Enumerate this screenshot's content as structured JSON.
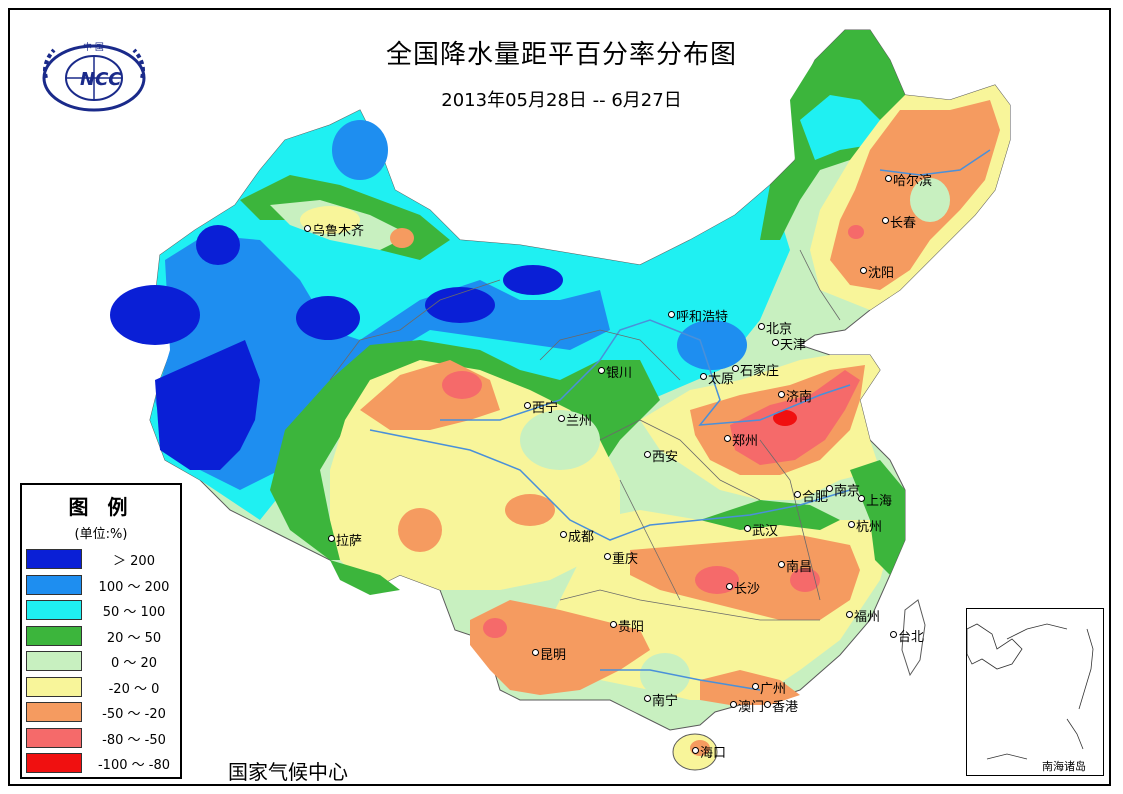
{
  "map": {
    "title": "全国降水量距平百分率分布图",
    "date_range": "2013年05月28日 -- 6月27日",
    "agency": "国家气候中心",
    "inset_label": "南海诸岛",
    "logo_text": "NCC",
    "logo_text_top": "中 国"
  },
  "legend": {
    "title": "图 例",
    "unit": "(单位:%)",
    "items": [
      {
        "label": "＞ 200",
        "color": "#0a1fd6"
      },
      {
        "label": "100 ～ 200",
        "color": "#1e8ef0"
      },
      {
        "label": "50 ～ 100",
        "color": "#1ff0f2"
      },
      {
        "label": "20 ～ 50",
        "color": "#3cb53c"
      },
      {
        "label": "0 ～ 20",
        "color": "#c8f0c0"
      },
      {
        "label": "-20 ～ 0",
        "color": "#f8f59a"
      },
      {
        "label": "-50 ～ -20",
        "color": "#f59b60"
      },
      {
        "label": "-80 ～ -50",
        "color": "#f56a6a"
      },
      {
        "label": "-100 ～ -80",
        "color": "#f01010"
      }
    ]
  },
  "cities": [
    {
      "name": "乌鲁木齐"
    },
    {
      "name": "哈尔滨"
    },
    {
      "name": "长春"
    },
    {
      "name": "沈阳"
    },
    {
      "name": "呼和浩特"
    },
    {
      "name": "北京"
    },
    {
      "name": "天津"
    },
    {
      "name": "石家庄"
    },
    {
      "name": "太原"
    },
    {
      "name": "银川"
    },
    {
      "name": "西宁"
    },
    {
      "name": "兰州"
    },
    {
      "name": "济南"
    },
    {
      "name": "郑州"
    },
    {
      "name": "西安"
    },
    {
      "name": "南京"
    },
    {
      "name": "合肥"
    },
    {
      "name": "上海"
    },
    {
      "name": "杭州"
    },
    {
      "name": "武汉"
    },
    {
      "name": "成都"
    },
    {
      "name": "重庆"
    },
    {
      "name": "拉萨"
    },
    {
      "name": "长沙"
    },
    {
      "name": "南昌"
    },
    {
      "name": "福州"
    },
    {
      "name": "台北"
    },
    {
      "name": "贵阳"
    },
    {
      "name": "昆明"
    },
    {
      "name": "南宁"
    },
    {
      "name": "广州"
    },
    {
      "name": "澳门"
    },
    {
      "name": "香港"
    },
    {
      "name": "海口"
    }
  ]
}
